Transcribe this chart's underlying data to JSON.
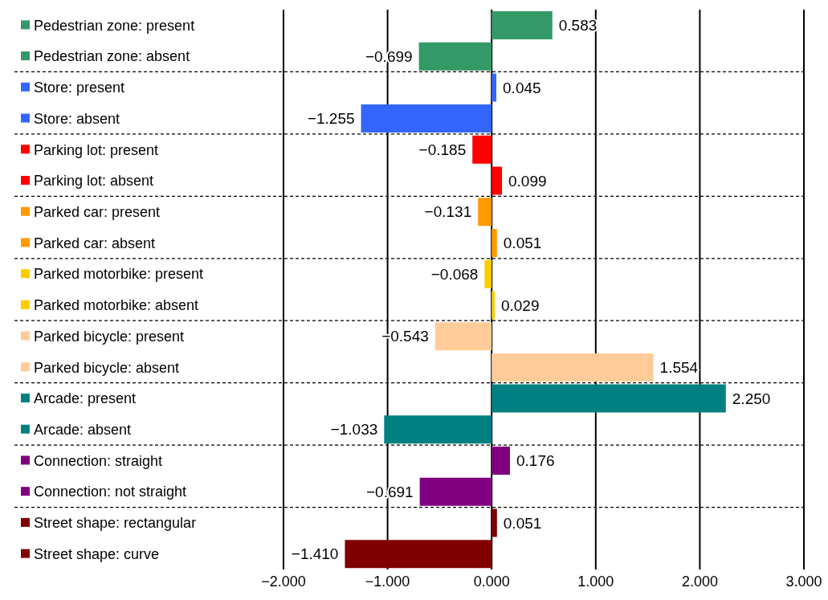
{
  "chart_data": {
    "type": "bar",
    "orientation": "horizontal",
    "categories": [
      "Pedestrian zone: present",
      "Pedestrian zone: absent",
      "Store: present",
      "Store: absent",
      "Parking lot: present",
      "Parking lot: absent",
      "Parked car: present",
      "Parked car: absent",
      "Parked motorbike: present",
      "Parked motorbike: absent",
      "Parked bicycle: present",
      "Parked bicycle: absent",
      "Arcade: present",
      "Arcade: absent",
      "Connection: straight",
      "Connection: not straight",
      "Street shape: rectangular",
      "Street shape: curve"
    ],
    "values": [
      0.583,
      -0.699,
      0.045,
      -1.255,
      -0.185,
      0.099,
      -0.131,
      0.051,
      -0.068,
      0.029,
      -0.543,
      1.554,
      2.25,
      -1.033,
      0.176,
      -0.691,
      0.051,
      -1.41
    ],
    "value_labels": [
      "0.583",
      "−0.699",
      "0.045",
      "−1.255",
      "−0.185",
      "0.099",
      "−0.131",
      "0.051",
      "−0.068",
      "0.029",
      "−0.543",
      "1.554",
      "2.250",
      "−1.033",
      "0.176",
      "−0.691",
      "0.051",
      "−1.410"
    ],
    "colors": [
      "#339966",
      "#339966",
      "#3366ff",
      "#3366ff",
      "#ff0000",
      "#ff0000",
      "#ff9900",
      "#ff9900",
      "#ffcc00",
      "#ffcc00",
      "#ffcc99",
      "#ffcc99",
      "#008080",
      "#008080",
      "#800080",
      "#800080",
      "#800000",
      "#800000"
    ],
    "xlim": [
      -2,
      3
    ],
    "xticks": [
      {
        "value": -2,
        "label": "−2.000"
      },
      {
        "value": -1,
        "label": "−1.000"
      },
      {
        "value": 0,
        "label": "0.000"
      },
      {
        "value": 1,
        "label": "1.000"
      },
      {
        "value": 2,
        "label": "2.000"
      },
      {
        "value": 3,
        "label": "3.000"
      }
    ],
    "grid": "x"
  }
}
